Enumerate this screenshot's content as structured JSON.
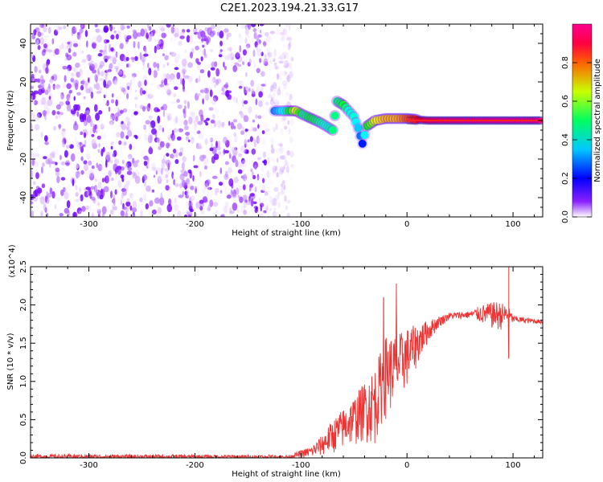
{
  "figure_title": "C2E1.2023.194.21.33.G17",
  "chart_data": [
    {
      "type": "heatmap",
      "title": "C2E1.2023.194.21.33.G17",
      "xlabel": "Height of straight line (km)",
      "ylabel": "Frequency (Hz)",
      "xlim": [
        -355,
        128
      ],
      "ylim": [
        -50,
        50
      ],
      "xticks": [
        -300,
        -200,
        -100,
        0,
        100
      ],
      "yticks": [
        -40,
        -20,
        0,
        20,
        40
      ],
      "colorbar": {
        "label": "Normalized spectral amplitude",
        "range": [
          0,
          1
        ],
        "ticks": [
          "0.0",
          "0.2",
          "0.4",
          "0.6",
          "0.8"
        ],
        "colormap": [
          "#ffffff",
          "#7a00ff",
          "#0000ff",
          "#00ffff",
          "#00ff00",
          "#ffff00",
          "#ff0000",
          "#ff00b0"
        ]
      },
      "noise_region_x": [
        -355,
        -108
      ],
      "signal_path": [
        {
          "x": -125,
          "y": 5,
          "a": 0.35
        },
        {
          "x": -115,
          "y": 5,
          "a": 0.45
        },
        {
          "x": -105,
          "y": 5,
          "a": 0.7
        },
        {
          "x": -98,
          "y": 3,
          "a": 0.5
        },
        {
          "x": -90,
          "y": 1,
          "a": 0.55
        },
        {
          "x": -82,
          "y": -1,
          "a": 0.5
        },
        {
          "x": -76,
          "y": -3,
          "a": 0.45
        },
        {
          "x": -70,
          "y": -5,
          "a": 0.5
        },
        {
          "x": -66,
          "y": 10,
          "a": 0.5
        },
        {
          "x": -60,
          "y": 8,
          "a": 0.55
        },
        {
          "x": -55,
          "y": 5,
          "a": 0.45
        },
        {
          "x": -50,
          "y": 2,
          "a": 0.45
        },
        {
          "x": -46,
          "y": -4,
          "a": 0.4
        },
        {
          "x": -42,
          "y": -12,
          "a": 0.3
        },
        {
          "x": -38,
          "y": -3,
          "a": 0.55
        },
        {
          "x": -30,
          "y": 0,
          "a": 0.7
        },
        {
          "x": -20,
          "y": 1,
          "a": 0.75
        },
        {
          "x": -10,
          "y": 1,
          "a": 0.75
        },
        {
          "x": 0,
          "y": 1,
          "a": 0.8
        },
        {
          "x": 20,
          "y": 0,
          "a": 0.9
        },
        {
          "x": 60,
          "y": 0,
          "a": 0.95
        },
        {
          "x": 92,
          "y": 0,
          "a": 0.95
        },
        {
          "x": 128,
          "y": 0,
          "a": 0.95
        }
      ]
    },
    {
      "type": "line",
      "xlabel": "Height of straight line (km)",
      "ylabel": "SNR (10 * v/v)",
      "y_multiplier": "(x10^4)",
      "xlim": [
        -355,
        128
      ],
      "ylim": [
        0,
        2.5
      ],
      "xticks": [
        -300,
        -200,
        -100,
        0,
        100
      ],
      "yticks": [
        "0.0",
        "0.5",
        "1.0",
        "1.5",
        "2.0",
        "2.5"
      ],
      "color": "#ee3333",
      "envelope": [
        {
          "x": -355,
          "lo": 0.0,
          "hi": 0.05
        },
        {
          "x": -150,
          "lo": 0.0,
          "hi": 0.04
        },
        {
          "x": -110,
          "lo": 0.0,
          "hi": 0.04
        },
        {
          "x": -100,
          "lo": 0.0,
          "hi": 0.1
        },
        {
          "x": -90,
          "lo": 0.0,
          "hi": 0.15
        },
        {
          "x": -80,
          "lo": 0.02,
          "hi": 0.3
        },
        {
          "x": -70,
          "lo": 0.05,
          "hi": 0.5
        },
        {
          "x": -60,
          "lo": 0.1,
          "hi": 0.65
        },
        {
          "x": -50,
          "lo": 0.15,
          "hi": 0.8
        },
        {
          "x": -40,
          "lo": 0.2,
          "hi": 1.0
        },
        {
          "x": -30,
          "lo": 0.15,
          "hi": 1.2
        },
        {
          "x": -25,
          "lo": 0.4,
          "hi": 1.4
        },
        {
          "x": -20,
          "lo": 0.5,
          "hi": 1.6
        },
        {
          "x": -10,
          "lo": 0.7,
          "hi": 1.6
        },
        {
          "x": 0,
          "lo": 0.9,
          "hi": 1.7
        },
        {
          "x": 10,
          "lo": 1.2,
          "hi": 1.75
        },
        {
          "x": 20,
          "lo": 1.5,
          "hi": 1.8
        },
        {
          "x": 30,
          "lo": 1.7,
          "hi": 1.85
        },
        {
          "x": 40,
          "lo": 1.8,
          "hi": 1.9
        },
        {
          "x": 60,
          "lo": 1.82,
          "hi": 1.92
        },
        {
          "x": 70,
          "lo": 1.75,
          "hi": 2.0
        },
        {
          "x": 85,
          "lo": 1.65,
          "hi": 2.05
        },
        {
          "x": 95,
          "lo": 1.7,
          "hi": 2.0
        },
        {
          "x": 100,
          "lo": 1.76,
          "hi": 1.86
        },
        {
          "x": 128,
          "lo": 1.75,
          "hi": 1.8
        }
      ],
      "spikes": [
        {
          "x": -10,
          "y": 2.28
        },
        {
          "x": -22,
          "y": 2.1
        },
        {
          "x": 96,
          "y": 2.5
        },
        {
          "x": 96,
          "y": 1.3
        }
      ]
    }
  ]
}
